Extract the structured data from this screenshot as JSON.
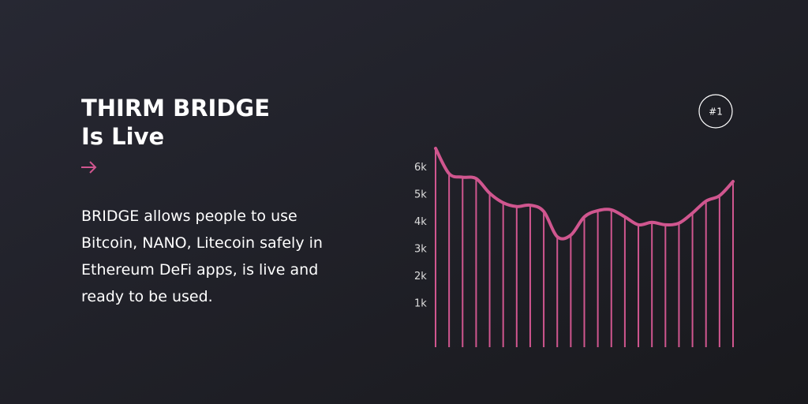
{
  "title": "THIRM BRIDGE",
  "subtitle": "Is Live",
  "body": [
    "BRIDGE allows people to use",
    "Bitcoin, NANO, Litecoin safely in",
    "Ethereum DeFi apps, is live and",
    "ready to be used."
  ],
  "badge": "#1",
  "chart_data": {
    "type": "line",
    "color": "#d0568f",
    "values": [
      6710,
      5780,
      5650,
      5600,
      5060,
      4710,
      4570,
      4620,
      4390,
      3460,
      3520,
      4190,
      4420,
      4450,
      4190,
      3900,
      3990,
      3900,
      3960,
      4330,
      4770,
      4970,
      5490
    ],
    "ylim": [
      -600,
      7000
    ],
    "yticks": [
      {
        "value": 1000,
        "label": "1k"
      },
      {
        "value": 2000,
        "label": "2k"
      },
      {
        "value": 3000,
        "label": "3k"
      },
      {
        "value": 4000,
        "label": "4k"
      },
      {
        "value": 5000,
        "label": "5k"
      },
      {
        "value": 6000,
        "label": "6k"
      }
    ]
  }
}
